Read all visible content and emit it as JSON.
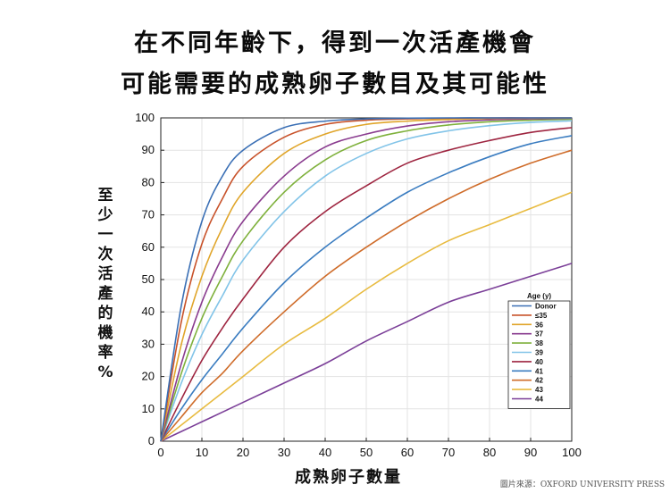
{
  "title_line1": "在不同年齡下，得到一次活產機會",
  "title_line2": "可能需要的成熟卵子數目及其可能性",
  "source": "圖片來源：OXFORD UNIVERSITY PRESS",
  "chart_data": {
    "type": "line",
    "xlabel": "成熟卵子數量",
    "ylabel": "至少一次活產的機率%",
    "xlim": [
      0,
      100
    ],
    "ylim": [
      0,
      100
    ],
    "xticks": [
      0,
      10,
      20,
      30,
      40,
      50,
      60,
      70,
      80,
      90,
      100
    ],
    "yticks": [
      0,
      10,
      20,
      30,
      40,
      50,
      60,
      70,
      80,
      90,
      100
    ],
    "grid": true,
    "legend_title": "Age (y)",
    "legend_position": "bottom-right",
    "x": [
      0,
      5,
      10,
      15,
      20,
      30,
      40,
      50,
      60,
      70,
      80,
      90,
      100
    ],
    "series": [
      {
        "name": "Donor",
        "color": "#3a6fb5",
        "values": [
          0,
          42,
          68,
          82,
          90,
          97,
          99,
          99.7,
          99.9,
          100,
          100,
          100,
          100
        ]
      },
      {
        "name": "≤35",
        "color": "#c8522a",
        "values": [
          0,
          37,
          61,
          75,
          85,
          94,
          98,
          99.3,
          99.7,
          99.9,
          100,
          100,
          100
        ]
      },
      {
        "name": "36",
        "color": "#e0a52a",
        "values": [
          0,
          30,
          51,
          66,
          77,
          89,
          95,
          98,
          99,
          99.5,
          99.8,
          99.9,
          100
        ]
      },
      {
        "name": "37",
        "color": "#8a3c8f",
        "values": [
          0,
          24,
          43,
          57,
          68,
          82,
          91,
          95,
          97.5,
          98.8,
          99.4,
          99.7,
          99.9
        ]
      },
      {
        "name": "38",
        "color": "#7fb13c",
        "values": [
          0,
          21,
          38,
          51,
          62,
          77,
          87,
          93,
          96,
          97.8,
          98.8,
          99.3,
          99.6
        ]
      },
      {
        "name": "39",
        "color": "#82c4e8",
        "values": [
          0,
          18,
          33,
          45,
          56,
          71,
          82,
          89,
          93.5,
          96,
          97.6,
          98.6,
          99.1
        ]
      },
      {
        "name": "40",
        "color": "#9e2540",
        "values": [
          0,
          13,
          25,
          35,
          44,
          60,
          71,
          79,
          86,
          90,
          93,
          95.5,
          97
        ]
      },
      {
        "name": "41",
        "color": "#3a7cc0",
        "values": [
          0,
          10,
          19,
          27,
          35,
          49,
          60,
          69,
          77,
          83,
          88,
          92,
          94.5
        ]
      },
      {
        "name": "42",
        "color": "#cf6c2a",
        "values": [
          0,
          7.5,
          15,
          21,
          28,
          40,
          51,
          60,
          68,
          75,
          81,
          86,
          90
        ]
      },
      {
        "name": "43",
        "color": "#e8bb40",
        "values": [
          0,
          5,
          10,
          15,
          20,
          30,
          38,
          47,
          55,
          62,
          67,
          72,
          77
        ]
      },
      {
        "name": "44",
        "color": "#7b3f98",
        "values": [
          0,
          3,
          6,
          9,
          12,
          18,
          24,
          31,
          37,
          43,
          47,
          51,
          55
        ]
      }
    ]
  }
}
